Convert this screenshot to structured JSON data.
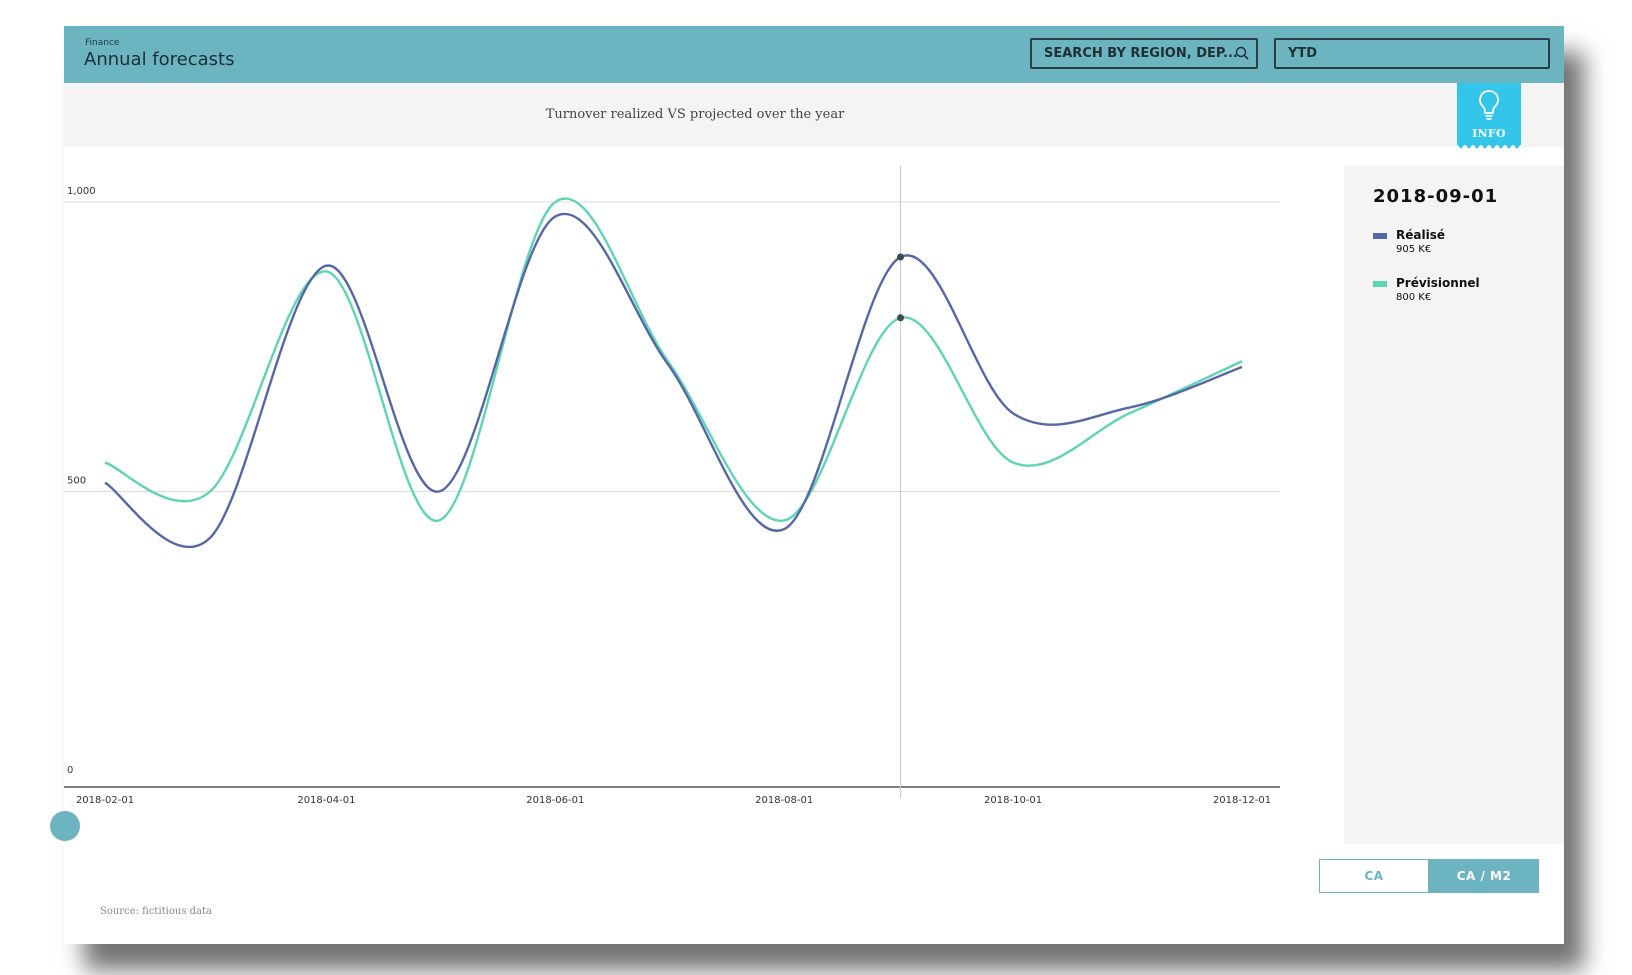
{
  "header": {
    "breadcrumb": "Finance",
    "title": "Annual forecasts",
    "search_placeholder": "SEARCH BY REGION, DEP...",
    "period": "YTD"
  },
  "subheader": {
    "subtitle": "Turnover realized VS projected over the year",
    "info_label": "INFO"
  },
  "tooltip": {
    "date": "2018-09-01",
    "items": [
      {
        "name": "Réalisé",
        "value": "905 K€",
        "color": "#5667a6"
      },
      {
        "name": "Prévisionnel",
        "value": "800 K€",
        "color": "#5ed4b6"
      }
    ]
  },
  "toggle": {
    "options": [
      "CA",
      "CA / M2"
    ],
    "active": "CA / M2"
  },
  "footer": {
    "source": "Source: fictitious data"
  },
  "chart_data": {
    "type": "line",
    "title": "",
    "xlabel": "",
    "ylabel": "",
    "ylim": [
      0,
      1000
    ],
    "yticks": [
      0,
      500,
      1000
    ],
    "ytick_labels": [
      "0",
      "500",
      "1,000"
    ],
    "xticks": [
      "2018-02-01",
      "2018-04-01",
      "2018-06-01",
      "2018-08-01",
      "2018-10-01",
      "2018-12-01"
    ],
    "x": [
      "2018-02-01",
      "2018-03-01",
      "2018-04-01",
      "2018-05-01",
      "2018-06-01",
      "2018-07-01",
      "2018-08-01",
      "2018-09-01",
      "2018-10-01",
      "2018-11-01",
      "2018-12-01"
    ],
    "series": [
      {
        "name": "Réalisé",
        "color": "#5667a6",
        "values": [
          515,
          420,
          890,
          500,
          975,
          720,
          435,
          905,
          635,
          645,
          715
        ]
      },
      {
        "name": "Prévisionnel",
        "color": "#5ed4b6",
        "values": [
          550,
          500,
          880,
          450,
          1000,
          725,
          450,
          800,
          550,
          635,
          725
        ]
      }
    ],
    "grid": true,
    "highlight_x": "2018-09-01"
  }
}
